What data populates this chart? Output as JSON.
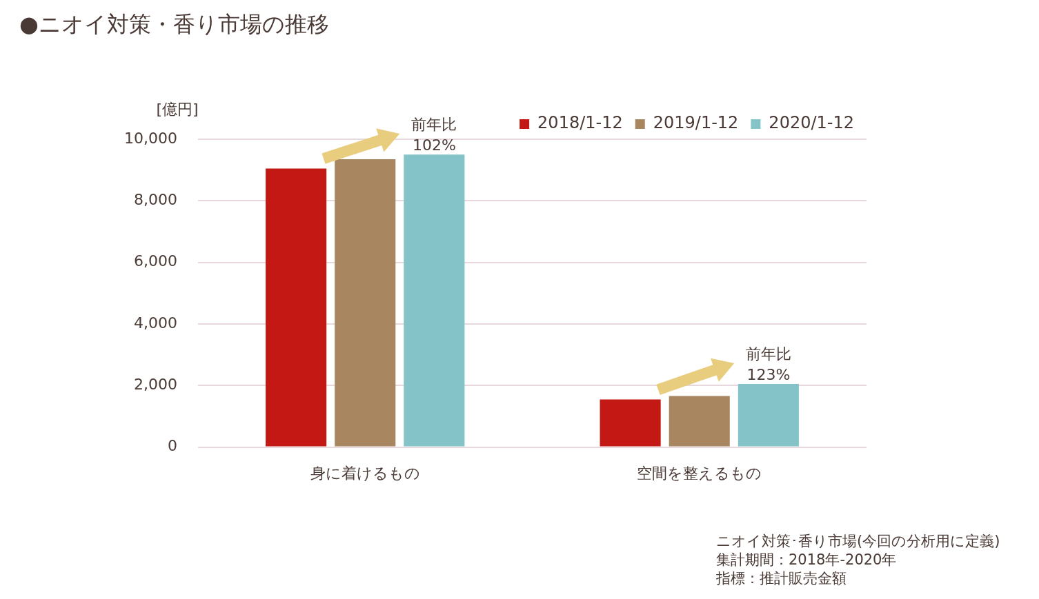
{
  "chart_data": {
    "type": "bar",
    "title": "●ニオイ対策・香り市場の推移",
    "ylabel": "[億円]",
    "categories": [
      "身に着けるもの",
      "空間を整えるもの"
    ],
    "series": [
      {
        "name": "2018/1-12",
        "color": "#c41814",
        "values": [
          9050,
          1550
        ]
      },
      {
        "name": "2019/1-12",
        "color": "#a88660",
        "values": [
          9350,
          1660
        ]
      },
      {
        "name": "2020/1-12",
        "color": "#84c3c7",
        "values": [
          9500,
          2050
        ]
      }
    ],
    "ylim": [
      0,
      10000
    ],
    "yticks": [
      {
        "value": 0,
        "label": "0"
      },
      {
        "value": 2000,
        "label": "2,000"
      },
      {
        "value": 4000,
        "label": "4,000"
      },
      {
        "value": 6000,
        "label": "6,000"
      },
      {
        "value": 8000,
        "label": "8,000"
      },
      {
        "value": 10000,
        "label": "10,000"
      }
    ],
    "grid": "y",
    "legend": "top right",
    "annotations": [
      "前年比\n102%",
      "前年比\n123%",
      "ニオイ対策･香り市場(今回の分析用に定義)",
      "集計期間：2018年-2020年",
      "指標：推計販売金額"
    ]
  }
}
